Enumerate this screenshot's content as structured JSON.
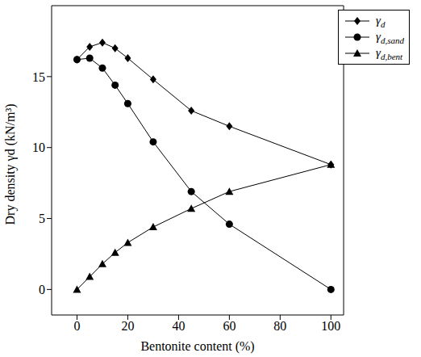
{
  "chart_data": {
    "type": "line",
    "x_label": "Bentonite content (%)",
    "y_label": "Dry density γd (kN/m³)",
    "x": [
      0,
      5,
      10,
      15,
      20,
      30,
      45,
      60,
      100
    ],
    "series": [
      {
        "name": "γd",
        "color": "#000000",
        "marker": "diamond",
        "values": [
          16.2,
          17.1,
          17.4,
          17.0,
          16.3,
          14.8,
          12.6,
          11.5,
          8.8
        ]
      },
      {
        "name": "γd,sand",
        "color": "#000000",
        "marker": "circle",
        "values": [
          16.2,
          16.3,
          15.6,
          14.4,
          13.1,
          10.4,
          6.9,
          4.6,
          0
        ]
      },
      {
        "name": "γd,bent",
        "color": "#000000",
        "marker": "triangle",
        "values": [
          0,
          0.9,
          1.8,
          2.6,
          3.3,
          4.4,
          5.7,
          6.9,
          8.8
        ]
      }
    ],
    "xlim": [
      -10,
      105
    ],
    "ylim": [
      -1.8,
      20
    ],
    "xticks": [
      0,
      20,
      40,
      60,
      80,
      100
    ],
    "yticks": [
      0,
      5,
      10,
      15
    ],
    "legend": "upper right"
  }
}
